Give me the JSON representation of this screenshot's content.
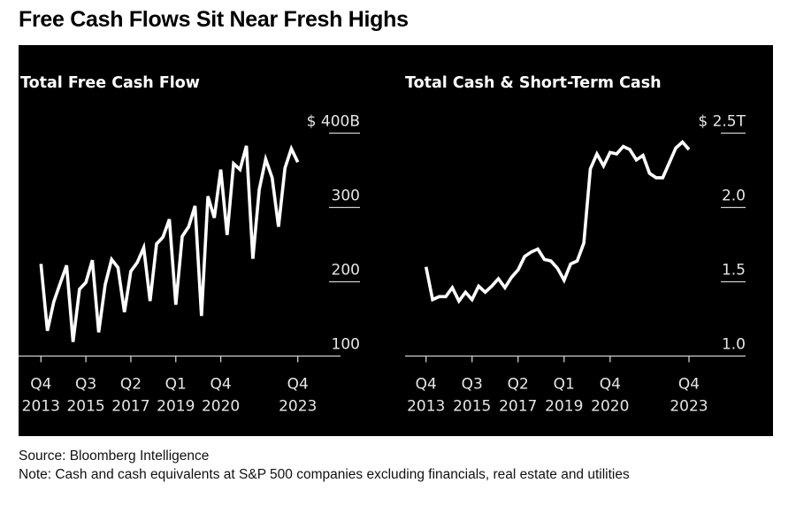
{
  "header": {
    "title": "Free Cash Flows Sit Near Fresh Highs"
  },
  "footer": {
    "source": "Source: Bloomberg Intelligence",
    "note": "Note: Cash and cash equivalents at S&P 500 companies excluding financials, real estate and utilities"
  },
  "colors": {
    "background": "#000000",
    "line": "#ffffff",
    "grid": "#cccccc",
    "page": "#ffffff"
  },
  "chart_data": [
    {
      "type": "line",
      "title": "Total Free Cash Flow",
      "xlabel": "",
      "ylabel": "",
      "unit_prefix": "$",
      "unit_suffix": "B",
      "ylim": [
        100,
        400
      ],
      "yticks": [
        100,
        200,
        300,
        400
      ],
      "ytick_labels": [
        "100",
        "200",
        "300",
        "$ 400B"
      ],
      "xtick_labels": [
        {
          "index": 0,
          "quarter": "Q4",
          "year": "2013"
        },
        {
          "index": 7,
          "quarter": "Q3",
          "year": "2015"
        },
        {
          "index": 14,
          "quarter": "Q2",
          "year": "2017"
        },
        {
          "index": 21,
          "quarter": "Q1",
          "year": "2019"
        },
        {
          "index": 28,
          "quarter": "Q4",
          "year": "2020"
        },
        {
          "index": 40,
          "quarter": "Q4",
          "year": "2023"
        }
      ],
      "grid": true,
      "x_start": "Q4 2013",
      "x_end": "Q4 2023",
      "series": [
        {
          "name": "Total Free Cash Flow",
          "values": [
            224,
            134,
            173,
            198,
            222,
            119,
            190,
            199,
            229,
            132,
            196,
            230,
            219,
            159,
            214,
            226,
            246,
            174,
            251,
            260,
            284,
            169,
            261,
            274,
            302,
            154,
            315,
            286,
            351,
            263,
            359,
            351,
            383,
            231,
            324,
            365,
            340,
            274,
            353,
            379,
            361
          ]
        }
      ]
    },
    {
      "type": "line",
      "title": "Total Cash & Short-Term Cash",
      "xlabel": "",
      "ylabel": "",
      "unit_prefix": "$",
      "unit_suffix": "T",
      "ylim": [
        1.0,
        2.5
      ],
      "yticks": [
        1.0,
        1.5,
        2.0,
        2.5
      ],
      "ytick_labels": [
        "1.0",
        "1.5",
        "2.0",
        "$ 2.5T"
      ],
      "xtick_labels": [
        {
          "index": 0,
          "quarter": "Q4",
          "year": "2013"
        },
        {
          "index": 7,
          "quarter": "Q3",
          "year": "2015"
        },
        {
          "index": 14,
          "quarter": "Q2",
          "year": "2017"
        },
        {
          "index": 21,
          "quarter": "Q1",
          "year": "2019"
        },
        {
          "index": 28,
          "quarter": "Q4",
          "year": "2020"
        },
        {
          "index": 40,
          "quarter": "Q4",
          "year": "2023"
        }
      ],
      "grid": true,
      "x_start": "Q4 2013",
      "x_end": "Q4 2023",
      "series": [
        {
          "name": "Total Cash & Short-Term Cash",
          "values": [
            1.6,
            1.38,
            1.4,
            1.4,
            1.46,
            1.37,
            1.43,
            1.38,
            1.47,
            1.43,
            1.47,
            1.52,
            1.46,
            1.53,
            1.58,
            1.67,
            1.7,
            1.72,
            1.65,
            1.64,
            1.59,
            1.51,
            1.62,
            1.64,
            1.76,
            2.26,
            2.36,
            2.28,
            2.37,
            2.36,
            2.41,
            2.39,
            2.32,
            2.35,
            2.23,
            2.2,
            2.2,
            2.3,
            2.4,
            2.44,
            2.39
          ]
        }
      ]
    }
  ]
}
